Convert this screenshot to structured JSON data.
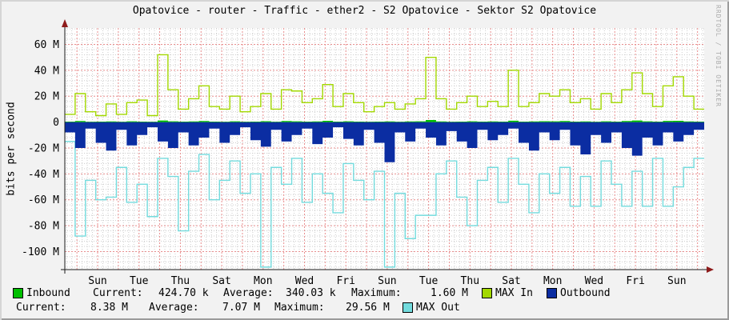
{
  "title": "Opatovice - router - Traffic - ether2 - S2 Opatovice - Sektor S2 Opatovice",
  "watermark": "RRDTOOL / TOBI OETIKER",
  "chart_data": {
    "type": "area",
    "title": "Opatovice - router - Traffic - ether2 - S2 Opatovice - Sektor S2 Opatovice",
    "xlabel": "",
    "ylabel": "bits per second",
    "unit": "M bits/s",
    "ylim": [
      -113,
      72.5
    ],
    "x_span_days": 31,
    "x_step_hours": 12,
    "grid": {
      "major_color": "#E88E8E",
      "minor_color": "#CDCDCD",
      "major_y_interval_M": 20,
      "minor_y_interval_M": 4,
      "major_x_interval_days": 1,
      "minor_x_interval_days": 0.25
    },
    "legend_position": "bottom",
    "y_ticks": [
      {
        "value": 60,
        "label": "60 M"
      },
      {
        "value": 40,
        "label": "40 M"
      },
      {
        "value": 20,
        "label": "20 M"
      },
      {
        "value": 0,
        "label": "0"
      },
      {
        "value": -20,
        "label": "-20 M"
      },
      {
        "value": -40,
        "label": "-40 M"
      },
      {
        "value": -60,
        "label": "-60 M"
      },
      {
        "value": -80,
        "label": "-80 M"
      },
      {
        "value": -100,
        "label": "-100 M"
      }
    ],
    "x_tick_labels": [
      "Sun",
      "Tue",
      "Thu",
      "Sat",
      "Mon",
      "Wed",
      "Fri",
      "Sun",
      "Tue",
      "Thu",
      "Sat",
      "Mon",
      "Wed",
      "Fri",
      "Sun"
    ],
    "series": [
      {
        "name": "Inbound",
        "type": "area",
        "color": "#00BF00",
        "values": [
          0.4,
          0.8,
          0.3,
          0.4,
          0.5,
          0.3,
          0.6,
          0.4,
          0.3,
          1.2,
          0.6,
          0.4,
          0.5,
          0.8,
          0.4,
          0.3,
          0.6,
          0.3,
          0.4,
          0.7,
          0.3,
          0.8,
          0.6,
          0.4,
          0.5,
          1.0,
          0.4,
          0.6,
          0.4,
          0.3,
          0.4,
          0.5,
          0.3,
          0.5,
          0.6,
          1.6,
          0.5,
          0.3,
          0.4,
          0.6,
          0.4,
          0.5,
          0.4,
          1.1,
          0.4,
          0.5,
          0.7,
          0.6,
          0.8,
          0.4,
          0.5,
          0.3,
          0.6,
          0.4,
          0.8,
          1.2,
          0.6,
          0.4,
          0.9,
          1.0,
          0.5,
          0.4
        ]
      },
      {
        "name": "MAX In",
        "type": "line",
        "color": "#A2D800",
        "values": [
          6,
          22,
          8,
          5,
          14,
          6,
          15,
          17,
          5,
          52,
          25,
          10,
          18,
          28,
          12,
          10,
          20,
          8,
          12,
          22,
          10,
          25,
          24,
          15,
          18,
          29,
          12,
          22,
          15,
          8,
          12,
          15,
          10,
          14,
          18,
          50,
          18,
          10,
          15,
          20,
          12,
          16,
          12,
          40,
          12,
          15,
          22,
          20,
          25,
          15,
          18,
          10,
          22,
          15,
          25,
          38,
          22,
          12,
          28,
          35,
          20,
          10
        ]
      },
      {
        "name": "Outbound",
        "type": "area",
        "color": "#0B2DA2",
        "values": [
          -8,
          -20,
          -5,
          -16,
          -22,
          -6,
          -18,
          -10,
          -4,
          -15,
          -20,
          -8,
          -18,
          -12,
          -5,
          -16,
          -10,
          -4,
          -14,
          -19,
          -6,
          -15,
          -10,
          -5,
          -17,
          -12,
          -4,
          -13,
          -18,
          -6,
          -16,
          -31,
          -8,
          -15,
          -5,
          -12,
          -18,
          -7,
          -15,
          -20,
          -6,
          -14,
          -10,
          -5,
          -16,
          -22,
          -8,
          -14,
          -6,
          -18,
          -25,
          -10,
          -16,
          -8,
          -20,
          -26,
          -12,
          -18,
          -8,
          -15,
          -10,
          -6
        ]
      },
      {
        "name": "MAX Out",
        "type": "line",
        "color": "#73DBDD",
        "values": [
          -15,
          -88,
          -45,
          -60,
          -58,
          -35,
          -62,
          -48,
          -73,
          -28,
          -42,
          -84,
          -38,
          -25,
          -60,
          -45,
          -30,
          -55,
          -40,
          -112,
          -35,
          -48,
          -28,
          -62,
          -40,
          -55,
          -70,
          -32,
          -45,
          -60,
          -38,
          -112,
          -55,
          -90,
          -72,
          -72,
          -40,
          -30,
          -58,
          -80,
          -45,
          -35,
          -62,
          -28,
          -48,
          -70,
          -40,
          -55,
          -35,
          -65,
          -42,
          -65,
          -30,
          -48,
          -65,
          -38,
          -65,
          -28,
          -65,
          -50,
          -35,
          -28
        ]
      }
    ]
  },
  "legend": {
    "row1": {
      "current_label": "Current:",
      "current_value": "424.70 k",
      "average_label": "Average:",
      "average_value": "340.03 k",
      "maximum_label": "Maximum:",
      "maximum_value": "1.60 M"
    },
    "row2": {
      "current_label": "Current:",
      "current_value": "8.38 M",
      "average_label": "Average:",
      "average_value": "7.07 M",
      "maximum_label": "Maximum:",
      "maximum_value": "29.56 M"
    }
  }
}
